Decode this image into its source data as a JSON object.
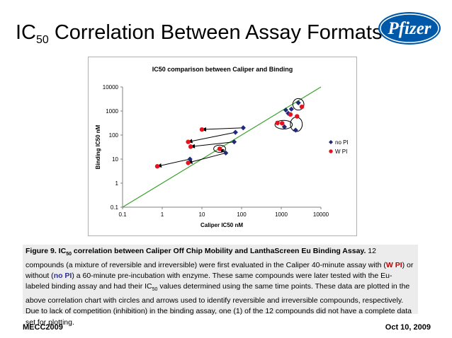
{
  "slide": {
    "title_prefix": "IC",
    "title_sub": "50",
    "title_rest": " Correlation Between Assay Formats"
  },
  "logo": {
    "text": "Pfizer",
    "color": "#0059a8"
  },
  "chart_data": {
    "type": "scatter",
    "title": "IC50 comparison between Caliper and Binding",
    "xlabel": "Caliper IC50 nM",
    "ylabel": "Binding IC50 nM",
    "xscale": "log",
    "yscale": "log",
    "xlim": [
      0.1,
      10000
    ],
    "ylim": [
      0.1,
      10000
    ],
    "x_ticks": [
      "0.1",
      "1",
      "10",
      "100",
      "1000",
      "10000"
    ],
    "y_ticks": [
      "0.1",
      "1",
      "10",
      "100",
      "1000",
      "10000"
    ],
    "grid": false,
    "legend_position": "right",
    "series": [
      {
        "name": "no PI",
        "color": "#1f2a7a",
        "marker": "diamond",
        "points": [
          [
            110,
            200
          ],
          [
            70,
            130
          ],
          [
            65,
            52
          ],
          [
            40,
            18
          ],
          [
            5,
            10
          ],
          [
            1300,
            1100
          ],
          [
            1800,
            1200
          ],
          [
            2700,
            2200
          ],
          [
            1200,
            220
          ],
          [
            2300,
            160
          ],
          [
            1500,
            800
          ]
        ]
      },
      {
        "name": "W PI",
        "color": "#e8111e",
        "marker": "circle",
        "points": [
          [
            10,
            170
          ],
          [
            4.5,
            52
          ],
          [
            5.2,
            33
          ],
          [
            28,
            27
          ],
          [
            4.5,
            7
          ],
          [
            0.75,
            5
          ],
          [
            800,
            320
          ],
          [
            1050,
            310
          ],
          [
            1700,
            720
          ],
          [
            2500,
            600
          ],
          [
            3300,
            1500
          ]
        ]
      }
    ],
    "arrows": [
      {
        "from": [
          110,
          200
        ],
        "to": [
          10,
          170
        ]
      },
      {
        "from": [
          70,
          130
        ],
        "to": [
          4.5,
          52
        ]
      },
      {
        "from": [
          65,
          52
        ],
        "to": [
          5.2,
          33
        ]
      },
      {
        "from": [
          40,
          18
        ],
        "to": [
          28,
          27
        ]
      },
      {
        "from": [
          40,
          18
        ],
        "to": [
          4.5,
          7
        ]
      },
      {
        "from": [
          5,
          10
        ],
        "to": [
          0.75,
          5
        ]
      }
    ],
    "annotations": [
      {
        "shape": "ellipse",
        "center": [
          1150,
          270
        ],
        "radii": [
          0.22,
          0.18
        ]
      },
      {
        "shape": "ellipse",
        "center": [
          2700,
          1900
        ],
        "radii": [
          0.14,
          0.24
        ]
      },
      {
        "shape": "ellipse",
        "center": [
          2400,
          280
        ],
        "radii": [
          0.15,
          0.3
        ]
      },
      {
        "shape": "ellipse",
        "center": [
          28,
          27
        ],
        "radii": [
          0.15,
          0.15
        ]
      }
    ],
    "trendline": {
      "from": [
        0.1,
        0.1
      ],
      "to": [
        10000,
        10000
      ],
      "color": "#3aa02b"
    }
  },
  "caption": {
    "fig_label": "Figure 9. IC",
    "fig_sub": "50",
    "fig_rest": " correlation between Caliper Off Chip Mobility and LanthaScreen Eu Binding Assay.",
    "t1": "  12 compounds (a mixture of reversible and irreversible) were first evaluated in the Caliper 40-minute assay with (",
    "wpi": "W PI",
    "t2": ") or without (",
    "nopi": "no PI",
    "t3": ") a 60-minute pre-incubation with enzyme.  These same compounds were later tested with the Eu-labeled binding assay and had their IC",
    "sub2": "50",
    "t4": " values determined using the same time points.  These data are plotted in the above correlation chart with circles  and arrows used to identify reversible and irreversible compounds, respectively.  Due to lack of competition (inhibition) in the binding assay, one (1) of the 12 compounds did not have a complete data set for plotting."
  },
  "footer": {
    "left": "MECC2009",
    "right": "Oct 10, 2009"
  }
}
